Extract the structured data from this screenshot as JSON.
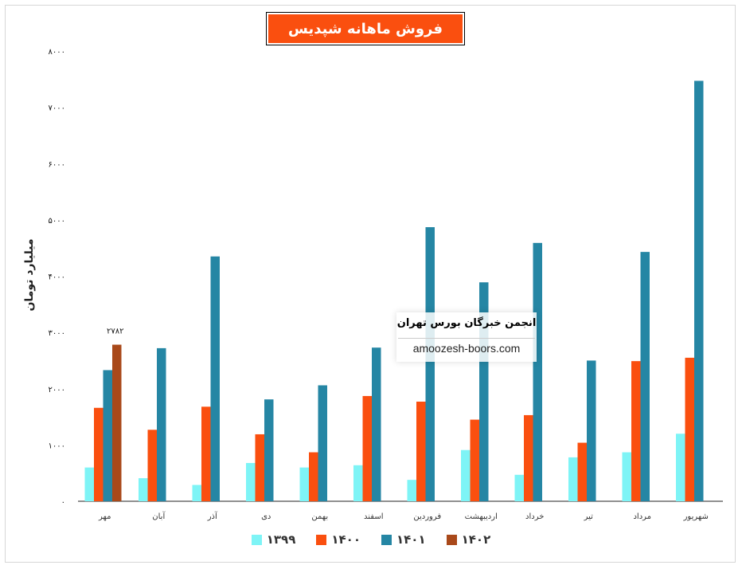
{
  "chart_data": {
    "type": "bar",
    "title": "فروش ماهانه شپدیس",
    "ylabel": "میلیارد تومان",
    "ylim": [
      0,
      8000
    ],
    "yticks": [
      "۰",
      "۱۰۰۰",
      "۲۰۰۰",
      "۳۰۰۰",
      "۴۰۰۰",
      "۵۰۰۰",
      "۶۰۰۰",
      "۷۰۰۰",
      "۸۰۰۰"
    ],
    "ytick_values": [
      0,
      1000,
      2000,
      3000,
      4000,
      5000,
      6000,
      7000,
      8000
    ],
    "categories": [
      "مهر",
      "آبان",
      "آذر",
      "دی",
      "بهمن",
      "اسفند",
      "فروردین",
      "اردیبهشت",
      "خرداد",
      "تیر",
      "مرداد",
      "شهریور"
    ],
    "series": [
      {
        "name": "۱۳۹۹",
        "color": "#7ef4f6",
        "values": [
          600,
          410,
          290,
          680,
          600,
          640,
          380,
          910,
          470,
          780,
          870,
          1200
        ]
      },
      {
        "name": "۱۴۰۰",
        "color": "#fa4f0f",
        "values": [
          1660,
          1270,
          1680,
          1190,
          870,
          1870,
          1770,
          1450,
          1530,
          1040,
          2490,
          2550
        ]
      },
      {
        "name": "۱۴۰۱",
        "color": "#2586a4",
        "values": [
          2330,
          2720,
          4350,
          1810,
          2060,
          2730,
          4870,
          3890,
          4590,
          2500,
          4430,
          7470
        ]
      },
      {
        "name": "۱۴۰۲",
        "color": "#a9491a",
        "values": [
          2782,
          null,
          null,
          null,
          null,
          null,
          null,
          null,
          null,
          null,
          null,
          null
        ]
      }
    ],
    "data_labels": [
      {
        "series": "۱۴۰۲",
        "category": "مهر",
        "text": "۲۷۸۲"
      }
    ],
    "grid": false,
    "legend": "bottom"
  },
  "watermark": {
    "title": "انجمن خبرگان بورس تهران",
    "url": "amoozesh-boors.com"
  }
}
